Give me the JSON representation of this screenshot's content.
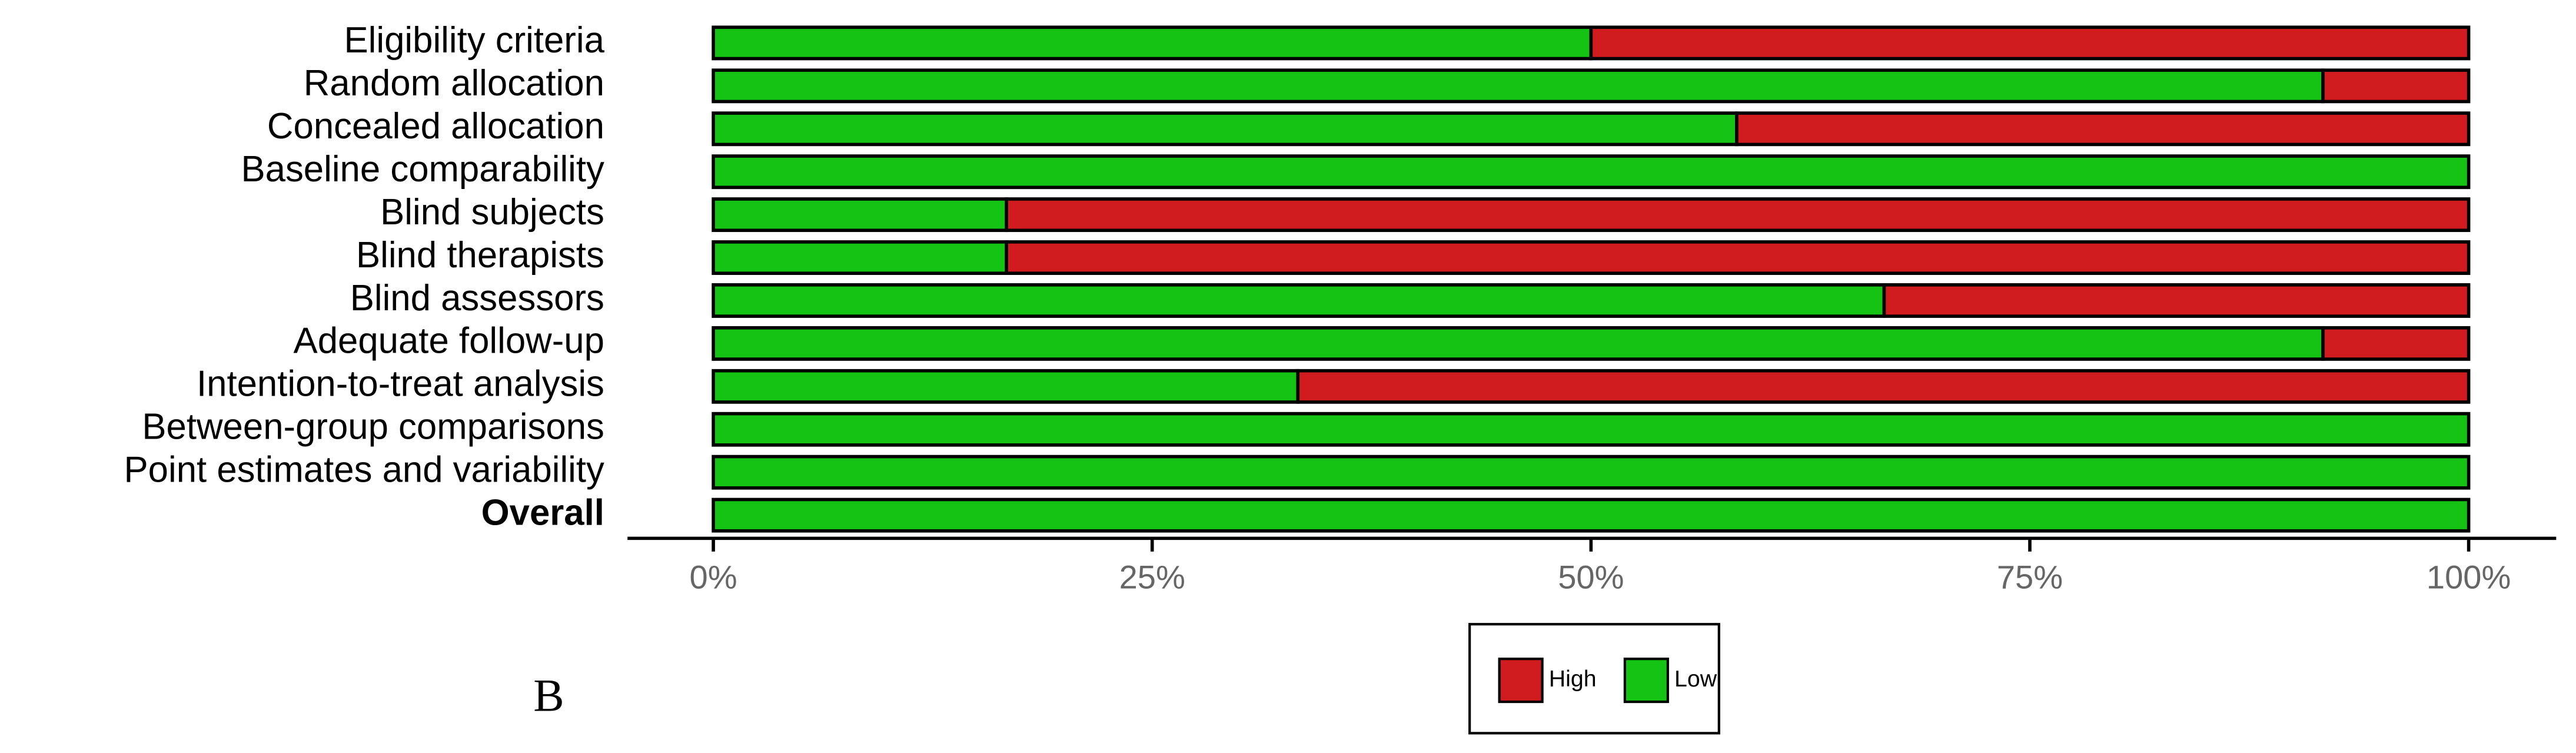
{
  "chart_data": {
    "type": "stacked-barh",
    "categories": [
      "Eligibility criteria",
      "Random allocation",
      "Concealed allocation",
      "Baseline comparability",
      "Blind subjects",
      "Blind therapists",
      "Blind assessors",
      "Adequate follow-up",
      "Intention-to-treat analysis",
      "Between-group comparisons",
      "Point estimates and variability",
      "Overall"
    ],
    "series": [
      {
        "name": "High",
        "color": "#d01c1f",
        "values": [
          50,
          8.3,
          41.7,
          0,
          83.3,
          83.3,
          33.3,
          8.3,
          66.7,
          0,
          0,
          0
        ]
      },
      {
        "name": "Low",
        "color": "#14c314",
        "values": [
          50,
          91.7,
          58.3,
          100,
          16.7,
          16.7,
          66.7,
          91.7,
          33.3,
          100,
          100,
          100
        ]
      }
    ],
    "xlim": [
      0,
      100
    ],
    "xticks": [
      {
        "value": 0,
        "label": "0%"
      },
      {
        "value": 25,
        "label": "25%"
      },
      {
        "value": 50,
        "label": "50%"
      },
      {
        "value": 75,
        "label": "75%"
      },
      {
        "value": 100,
        "label": "100%"
      }
    ],
    "panel_label": "B"
  }
}
